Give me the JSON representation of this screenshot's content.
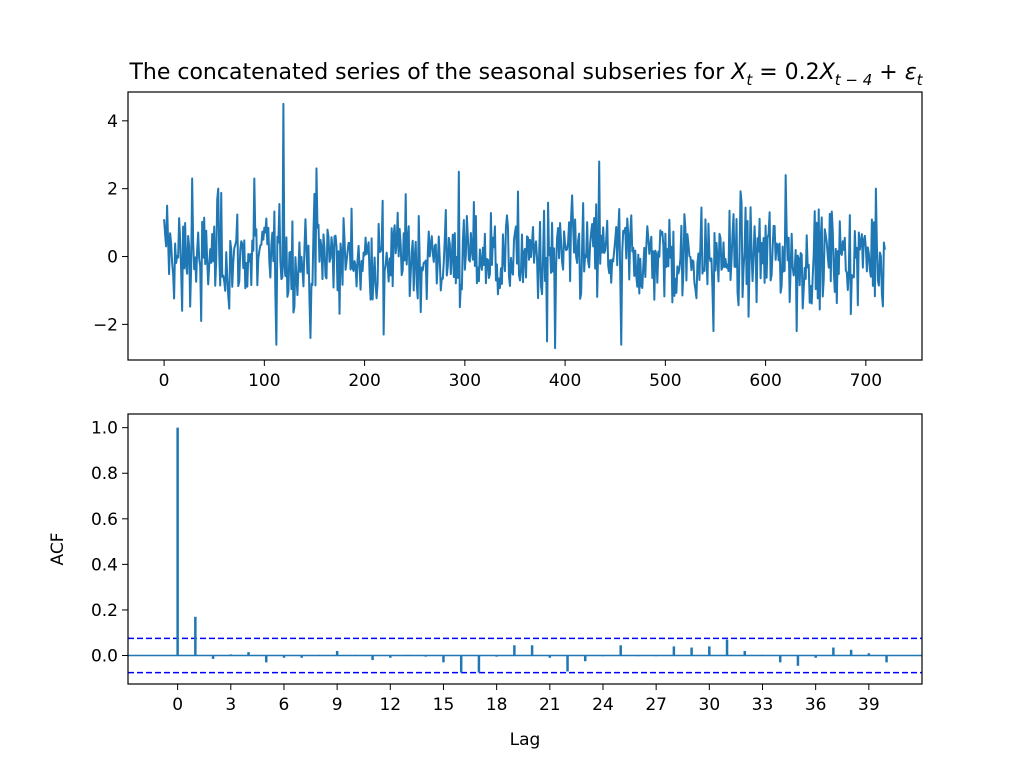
{
  "figure": {
    "title_main": "The concatenated series of the seasonal subseries for ",
    "title_math": "X_t = 0.2X_{t-4} + ε_t"
  },
  "chart_data": [
    {
      "type": "line",
      "title": "The concatenated series of the seasonal subseries for X_t = 0.2X_{t-4} + ε_t",
      "xlabel": "",
      "ylabel": "",
      "xlim": [
        -36,
        756
      ],
      "ylim": [
        -3.05,
        4.85
      ],
      "xticks": [
        0,
        100,
        200,
        300,
        400,
        500,
        600,
        700
      ],
      "yticks": [
        -2,
        0,
        2,
        4
      ],
      "ytick_labels": [
        "−2",
        "0",
        "2",
        "4"
      ],
      "grid": false,
      "color": "#1f77b4",
      "n_points": 720,
      "sample_points": [
        {
          "x": 0,
          "y": 1.1
        },
        {
          "x": 2,
          "y": 0.3
        },
        {
          "x": 3,
          "y": 1.5
        },
        {
          "x": 18,
          "y": -1.6
        },
        {
          "x": 28,
          "y": 2.3
        },
        {
          "x": 37,
          "y": -1.9
        },
        {
          "x": 54,
          "y": 2.0
        },
        {
          "x": 90,
          "y": 2.3
        },
        {
          "x": 112,
          "y": -2.6
        },
        {
          "x": 119,
          "y": 4.5
        },
        {
          "x": 146,
          "y": -2.4
        },
        {
          "x": 152,
          "y": 2.6
        },
        {
          "x": 219,
          "y": -2.3
        },
        {
          "x": 294,
          "y": 2.5
        },
        {
          "x": 382,
          "y": -2.5
        },
        {
          "x": 390,
          "y": -2.7
        },
        {
          "x": 434,
          "y": 2.8
        },
        {
          "x": 456,
          "y": -2.6
        },
        {
          "x": 548,
          "y": -2.2
        },
        {
          "x": 620,
          "y": 2.4
        },
        {
          "x": 631,
          "y": -2.2
        },
        {
          "x": 710,
          "y": 2.0
        },
        {
          "x": 719,
          "y": 0.2
        }
      ]
    },
    {
      "type": "bar",
      "subtype": "acf-stem",
      "xlabel": "Lag",
      "ylabel": "ACF",
      "xlim": [
        -2.8,
        42.0
      ],
      "ylim": [
        -0.125,
        1.06
      ],
      "xticks": [
        0,
        3,
        6,
        9,
        12,
        15,
        18,
        21,
        24,
        27,
        30,
        33,
        36,
        39
      ],
      "yticks": [
        0.0,
        0.2,
        0.4,
        0.6,
        0.8,
        1.0
      ],
      "ytick_labels": [
        "0.0",
        "0.2",
        "0.4",
        "0.6",
        "0.8",
        "1.0"
      ],
      "color": "#1f77b4",
      "confidence_band": 0.075,
      "confidence_color": "#0000ff",
      "lags": [
        0,
        1,
        2,
        3,
        4,
        5,
        6,
        7,
        8,
        9,
        10,
        11,
        12,
        13,
        14,
        15,
        16,
        17,
        18,
        19,
        20,
        21,
        22,
        23,
        24,
        25,
        26,
        27,
        28,
        29,
        30,
        31,
        32,
        33,
        34,
        35,
        36,
        37,
        38,
        39,
        40
      ],
      "values": [
        1.0,
        0.17,
        -0.015,
        0.005,
        0.015,
        -0.03,
        -0.01,
        -0.01,
        0.003,
        0.02,
        0.003,
        -0.02,
        -0.01,
        0.003,
        -0.005,
        -0.03,
        -0.075,
        -0.075,
        -0.005,
        0.045,
        0.045,
        -0.01,
        -0.07,
        -0.025,
        -0.003,
        0.045,
        -0.003,
        -0.003,
        0.04,
        0.035,
        0.04,
        0.07,
        0.02,
        0.003,
        -0.03,
        -0.045,
        -0.01,
        0.035,
        0.025,
        0.01,
        -0.03
      ]
    }
  ]
}
